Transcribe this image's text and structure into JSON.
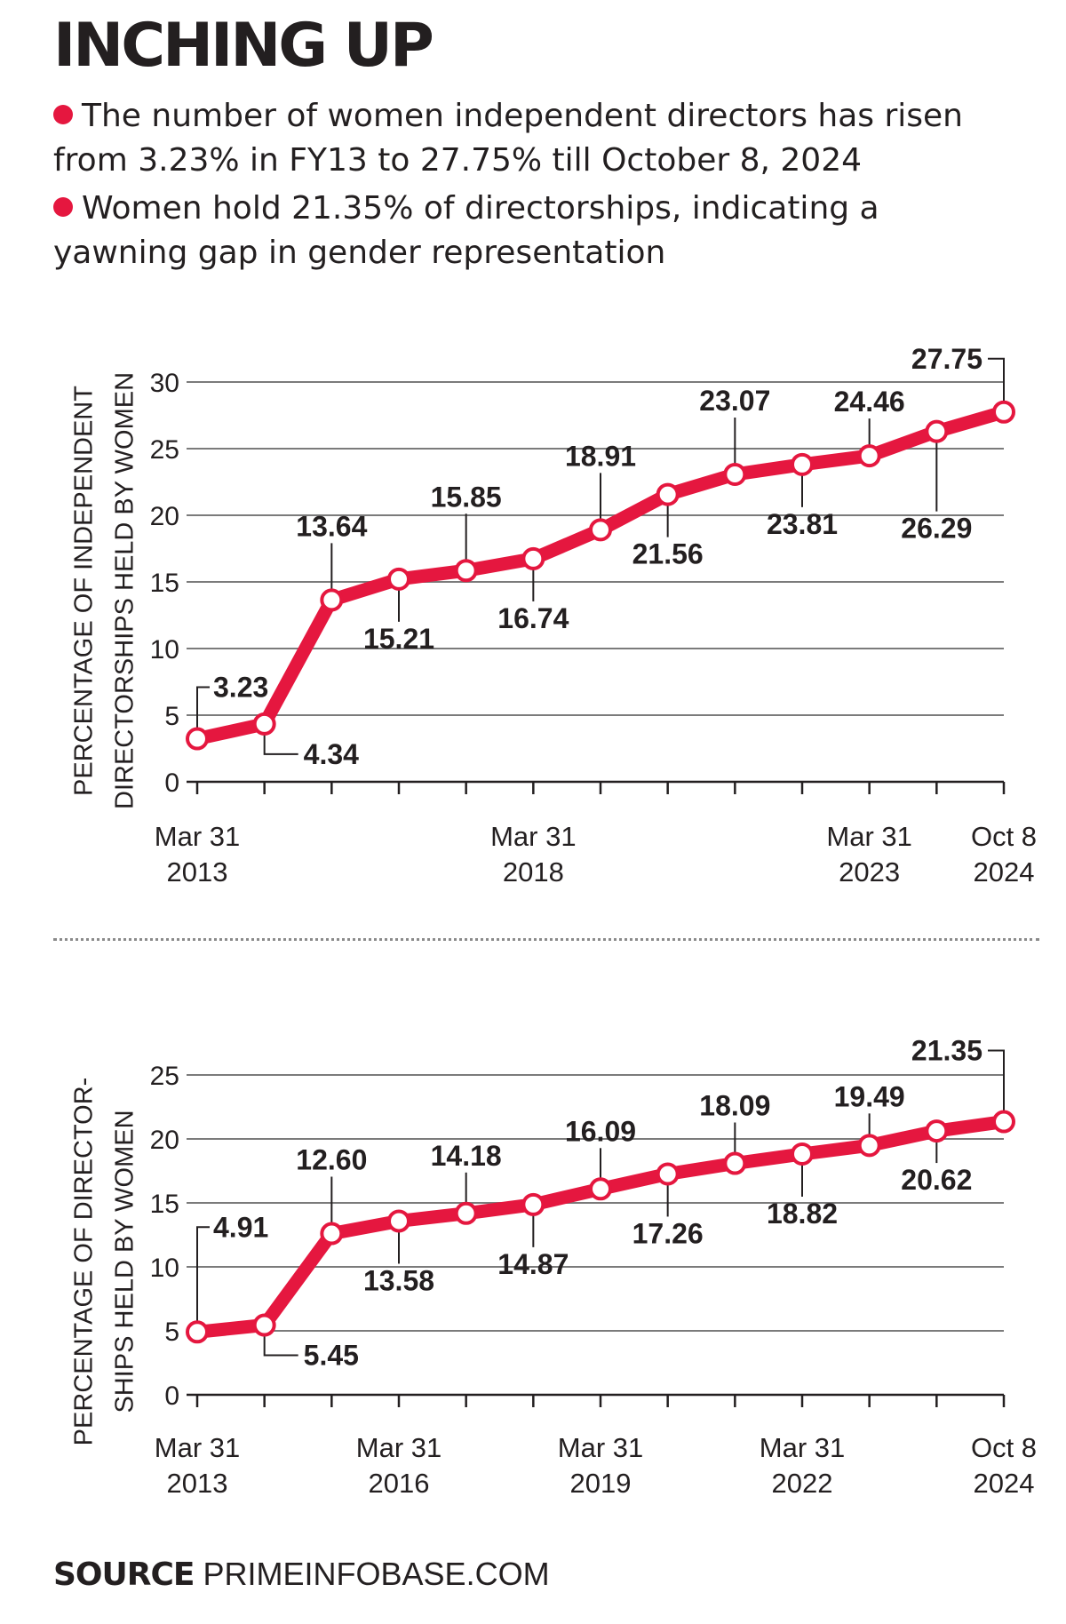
{
  "title": "INCHING UP",
  "bullets": [
    "The number of women independent directors has risen from 3.23% in FY13 to 27.75% till October 8, 2024",
    "Women hold 21.35% of directorships, indicating a yawning gap in gender representation"
  ],
  "source": {
    "label": "SOURCE",
    "value": "PRIMEINFOBASE.COM"
  },
  "colors": {
    "series": "#e5173f",
    "bullet": "#e5173f",
    "text": "#231f20",
    "grid": "#7b7b7b"
  },
  "chart_data": [
    {
      "type": "line",
      "ylabel": [
        "PERCENTAGE OF INDEPENDENT",
        "DIRECTORSHIPS HELD BY WOMEN"
      ],
      "ylim": [
        0,
        30
      ],
      "yticks": [
        0,
        5,
        10,
        15,
        20,
        25,
        30
      ],
      "grid": true,
      "x": [
        "Mar 31 2013",
        "Mar 31 2014",
        "Mar 31 2015",
        "Mar 31 2016",
        "Mar 31 2017",
        "Mar 31 2018",
        "Mar 31 2019",
        "Mar 31 2020",
        "Mar 31 2021",
        "Mar 31 2022",
        "Mar 31 2023",
        "Mar 31 2024",
        "Oct 8 2024"
      ],
      "x_labels": [
        {
          "index": 0,
          "lines": [
            "Mar 31",
            "2013"
          ]
        },
        {
          "index": 5,
          "lines": [
            "Mar 31",
            "2018"
          ]
        },
        {
          "index": 10,
          "lines": [
            "Mar 31",
            "2023"
          ]
        },
        {
          "index": 12,
          "lines": [
            "Oct 8",
            "2024"
          ]
        }
      ],
      "series": [
        {
          "values": [
            3.23,
            4.34,
            13.64,
            15.21,
            15.85,
            16.74,
            18.91,
            21.56,
            23.07,
            23.81,
            24.46,
            26.29,
            27.75
          ],
          "labels": [
            "3.23",
            "4.34",
            "13.64",
            "15.21",
            "15.85",
            "16.74",
            "18.91",
            "21.56",
            "23.07",
            "23.81",
            "24.46",
            "26.29",
            "27.75"
          ]
        }
      ]
    },
    {
      "type": "line",
      "ylabel": [
        "PERCENTAGE OF DIRECTOR-",
        "SHIPS HELD BY WOMEN"
      ],
      "ylim": [
        0,
        25
      ],
      "yticks": [
        0,
        5,
        10,
        15,
        20,
        25
      ],
      "grid": true,
      "x": [
        "Mar 31 2013",
        "Mar 31 2014",
        "Mar 31 2015",
        "Mar 31 2016",
        "Mar 31 2017",
        "Mar 31 2018",
        "Mar 31 2019",
        "Mar 31 2020",
        "Mar 31 2021",
        "Mar 31 2022",
        "Mar 31 2023",
        "Mar 31 2024",
        "Oct 8 2024"
      ],
      "x_labels": [
        {
          "index": 0,
          "lines": [
            "Mar 31",
            "2013"
          ]
        },
        {
          "index": 3,
          "lines": [
            "Mar 31",
            "2016"
          ]
        },
        {
          "index": 6,
          "lines": [
            "Mar 31",
            "2019"
          ]
        },
        {
          "index": 9,
          "lines": [
            "Mar 31",
            "2022"
          ]
        },
        {
          "index": 12,
          "lines": [
            "Oct 8",
            "2024"
          ]
        }
      ],
      "series": [
        {
          "values": [
            4.91,
            5.45,
            12.6,
            13.58,
            14.18,
            14.87,
            16.09,
            17.26,
            18.09,
            18.82,
            19.49,
            20.62,
            21.35
          ],
          "labels": [
            "4.91",
            "5.45",
            "12.60",
            "13.58",
            "14.18",
            "14.87",
            "16.09",
            "17.26",
            "18.09",
            "18.82",
            "19.49",
            "20.62",
            "21.35"
          ]
        }
      ]
    }
  ]
}
